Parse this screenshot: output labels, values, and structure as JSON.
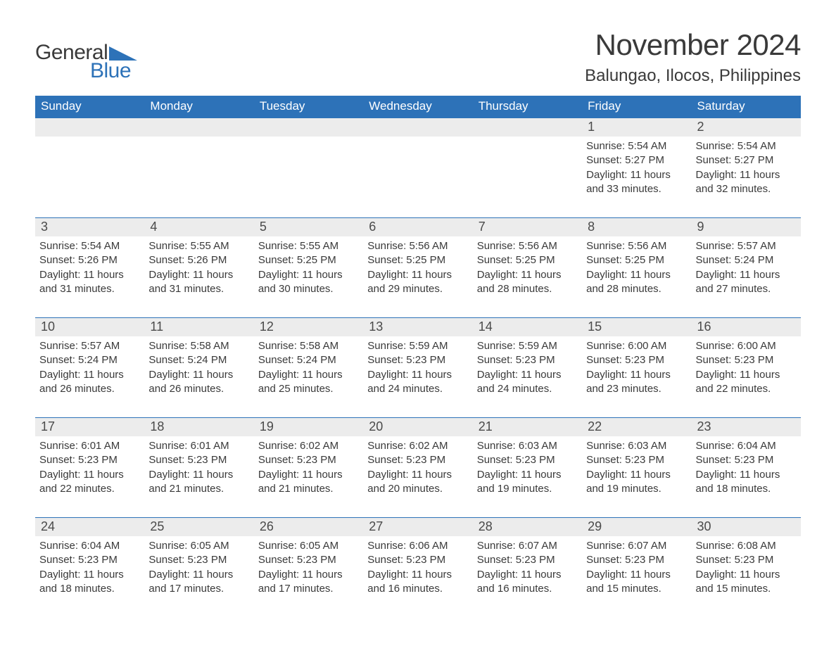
{
  "logo": {
    "word1": "General",
    "word2": "Blue",
    "brand_color": "#2d72b8"
  },
  "header": {
    "month_title": "November 2024",
    "location": "Balungao, Ilocos, Philippines"
  },
  "style": {
    "header_bg": "#2d72b8",
    "header_text": "#ffffff",
    "row_divider": "#2d72b8",
    "daynum_bg": "#ececec",
    "body_text": "#3a3a3a",
    "page_bg": "#ffffff",
    "title_fontsize_pt": 32,
    "location_fontsize_pt": 18,
    "weekday_fontsize_pt": 13,
    "daynum_fontsize_pt": 14,
    "body_fontsize_pt": 11
  },
  "weekdays": [
    "Sunday",
    "Monday",
    "Tuesday",
    "Wednesday",
    "Thursday",
    "Friday",
    "Saturday"
  ],
  "weeks": [
    [
      {
        "blank": true
      },
      {
        "blank": true
      },
      {
        "blank": true
      },
      {
        "blank": true
      },
      {
        "blank": true
      },
      {
        "day": "1",
        "sunrise": "Sunrise: 5:54 AM",
        "sunset": "Sunset: 5:27 PM",
        "daylight1": "Daylight: 11 hours",
        "daylight2": "and 33 minutes."
      },
      {
        "day": "2",
        "sunrise": "Sunrise: 5:54 AM",
        "sunset": "Sunset: 5:27 PM",
        "daylight1": "Daylight: 11 hours",
        "daylight2": "and 32 minutes."
      }
    ],
    [
      {
        "day": "3",
        "sunrise": "Sunrise: 5:54 AM",
        "sunset": "Sunset: 5:26 PM",
        "daylight1": "Daylight: 11 hours",
        "daylight2": "and 31 minutes."
      },
      {
        "day": "4",
        "sunrise": "Sunrise: 5:55 AM",
        "sunset": "Sunset: 5:26 PM",
        "daylight1": "Daylight: 11 hours",
        "daylight2": "and 31 minutes."
      },
      {
        "day": "5",
        "sunrise": "Sunrise: 5:55 AM",
        "sunset": "Sunset: 5:25 PM",
        "daylight1": "Daylight: 11 hours",
        "daylight2": "and 30 minutes."
      },
      {
        "day": "6",
        "sunrise": "Sunrise: 5:56 AM",
        "sunset": "Sunset: 5:25 PM",
        "daylight1": "Daylight: 11 hours",
        "daylight2": "and 29 minutes."
      },
      {
        "day": "7",
        "sunrise": "Sunrise: 5:56 AM",
        "sunset": "Sunset: 5:25 PM",
        "daylight1": "Daylight: 11 hours",
        "daylight2": "and 28 minutes."
      },
      {
        "day": "8",
        "sunrise": "Sunrise: 5:56 AM",
        "sunset": "Sunset: 5:25 PM",
        "daylight1": "Daylight: 11 hours",
        "daylight2": "and 28 minutes."
      },
      {
        "day": "9",
        "sunrise": "Sunrise: 5:57 AM",
        "sunset": "Sunset: 5:24 PM",
        "daylight1": "Daylight: 11 hours",
        "daylight2": "and 27 minutes."
      }
    ],
    [
      {
        "day": "10",
        "sunrise": "Sunrise: 5:57 AM",
        "sunset": "Sunset: 5:24 PM",
        "daylight1": "Daylight: 11 hours",
        "daylight2": "and 26 minutes."
      },
      {
        "day": "11",
        "sunrise": "Sunrise: 5:58 AM",
        "sunset": "Sunset: 5:24 PM",
        "daylight1": "Daylight: 11 hours",
        "daylight2": "and 26 minutes."
      },
      {
        "day": "12",
        "sunrise": "Sunrise: 5:58 AM",
        "sunset": "Sunset: 5:24 PM",
        "daylight1": "Daylight: 11 hours",
        "daylight2": "and 25 minutes."
      },
      {
        "day": "13",
        "sunrise": "Sunrise: 5:59 AM",
        "sunset": "Sunset: 5:23 PM",
        "daylight1": "Daylight: 11 hours",
        "daylight2": "and 24 minutes."
      },
      {
        "day": "14",
        "sunrise": "Sunrise: 5:59 AM",
        "sunset": "Sunset: 5:23 PM",
        "daylight1": "Daylight: 11 hours",
        "daylight2": "and 24 minutes."
      },
      {
        "day": "15",
        "sunrise": "Sunrise: 6:00 AM",
        "sunset": "Sunset: 5:23 PM",
        "daylight1": "Daylight: 11 hours",
        "daylight2": "and 23 minutes."
      },
      {
        "day": "16",
        "sunrise": "Sunrise: 6:00 AM",
        "sunset": "Sunset: 5:23 PM",
        "daylight1": "Daylight: 11 hours",
        "daylight2": "and 22 minutes."
      }
    ],
    [
      {
        "day": "17",
        "sunrise": "Sunrise: 6:01 AM",
        "sunset": "Sunset: 5:23 PM",
        "daylight1": "Daylight: 11 hours",
        "daylight2": "and 22 minutes."
      },
      {
        "day": "18",
        "sunrise": "Sunrise: 6:01 AM",
        "sunset": "Sunset: 5:23 PM",
        "daylight1": "Daylight: 11 hours",
        "daylight2": "and 21 minutes."
      },
      {
        "day": "19",
        "sunrise": "Sunrise: 6:02 AM",
        "sunset": "Sunset: 5:23 PM",
        "daylight1": "Daylight: 11 hours",
        "daylight2": "and 21 minutes."
      },
      {
        "day": "20",
        "sunrise": "Sunrise: 6:02 AM",
        "sunset": "Sunset: 5:23 PM",
        "daylight1": "Daylight: 11 hours",
        "daylight2": "and 20 minutes."
      },
      {
        "day": "21",
        "sunrise": "Sunrise: 6:03 AM",
        "sunset": "Sunset: 5:23 PM",
        "daylight1": "Daylight: 11 hours",
        "daylight2": "and 19 minutes."
      },
      {
        "day": "22",
        "sunrise": "Sunrise: 6:03 AM",
        "sunset": "Sunset: 5:23 PM",
        "daylight1": "Daylight: 11 hours",
        "daylight2": "and 19 minutes."
      },
      {
        "day": "23",
        "sunrise": "Sunrise: 6:04 AM",
        "sunset": "Sunset: 5:23 PM",
        "daylight1": "Daylight: 11 hours",
        "daylight2": "and 18 minutes."
      }
    ],
    [
      {
        "day": "24",
        "sunrise": "Sunrise: 6:04 AM",
        "sunset": "Sunset: 5:23 PM",
        "daylight1": "Daylight: 11 hours",
        "daylight2": "and 18 minutes."
      },
      {
        "day": "25",
        "sunrise": "Sunrise: 6:05 AM",
        "sunset": "Sunset: 5:23 PM",
        "daylight1": "Daylight: 11 hours",
        "daylight2": "and 17 minutes."
      },
      {
        "day": "26",
        "sunrise": "Sunrise: 6:05 AM",
        "sunset": "Sunset: 5:23 PM",
        "daylight1": "Daylight: 11 hours",
        "daylight2": "and 17 minutes."
      },
      {
        "day": "27",
        "sunrise": "Sunrise: 6:06 AM",
        "sunset": "Sunset: 5:23 PM",
        "daylight1": "Daylight: 11 hours",
        "daylight2": "and 16 minutes."
      },
      {
        "day": "28",
        "sunrise": "Sunrise: 6:07 AM",
        "sunset": "Sunset: 5:23 PM",
        "daylight1": "Daylight: 11 hours",
        "daylight2": "and 16 minutes."
      },
      {
        "day": "29",
        "sunrise": "Sunrise: 6:07 AM",
        "sunset": "Sunset: 5:23 PM",
        "daylight1": "Daylight: 11 hours",
        "daylight2": "and 15 minutes."
      },
      {
        "day": "30",
        "sunrise": "Sunrise: 6:08 AM",
        "sunset": "Sunset: 5:23 PM",
        "daylight1": "Daylight: 11 hours",
        "daylight2": "and 15 minutes."
      }
    ]
  ]
}
